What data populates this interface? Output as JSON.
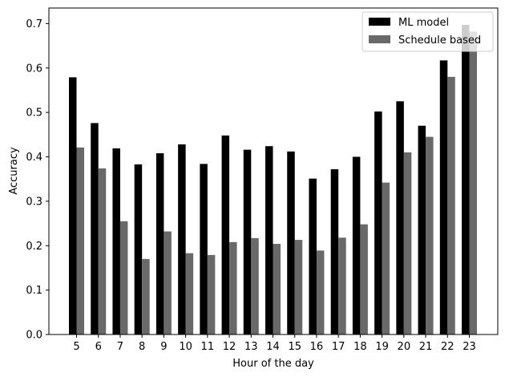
{
  "chart_data": {
    "type": "bar",
    "title": "",
    "xlabel": "Hour of the day",
    "ylabel": "Accuracy",
    "categories": [
      "5",
      "6",
      "7",
      "8",
      "9",
      "10",
      "11",
      "12",
      "13",
      "14",
      "15",
      "16",
      "17",
      "18",
      "19",
      "20",
      "21",
      "22",
      "23"
    ],
    "ylim": [
      0,
      0.735
    ],
    "yticks": [
      0.0,
      0.1,
      0.2,
      0.3,
      0.4,
      0.5,
      0.6,
      0.7
    ],
    "ytick_labels": [
      "0.0",
      "0.1",
      "0.2",
      "0.3",
      "0.4",
      "0.5",
      "0.6",
      "0.7"
    ],
    "grid": false,
    "legend": {
      "placement": "top-right"
    },
    "series": [
      {
        "name": "ML model",
        "color": "#000000",
        "values": [
          0.579,
          0.476,
          0.419,
          0.383,
          0.408,
          0.428,
          0.384,
          0.448,
          0.416,
          0.424,
          0.412,
          0.351,
          0.372,
          0.4,
          0.502,
          0.525,
          0.47,
          0.617,
          0.697
        ]
      },
      {
        "name": "Schedule based",
        "color": "#696969",
        "values": [
          0.421,
          0.374,
          0.255,
          0.17,
          0.232,
          0.183,
          0.179,
          0.208,
          0.217,
          0.204,
          0.213,
          0.189,
          0.218,
          0.248,
          0.342,
          0.41,
          0.445,
          0.58,
          0.682
        ]
      }
    ]
  }
}
